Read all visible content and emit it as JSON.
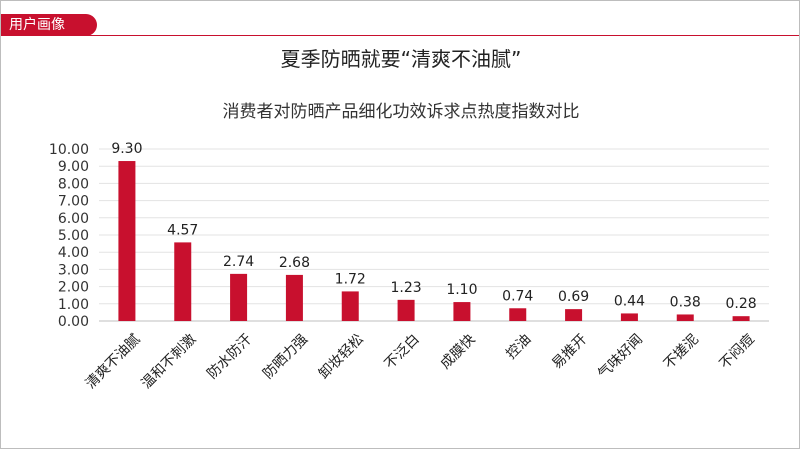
{
  "header": {
    "tag": "用户画像",
    "title": "夏季防晒就要“清爽不油腻”"
  },
  "colors": {
    "accent": "#c8102e",
    "bar": "#c8102e"
  },
  "chart_data": {
    "type": "bar",
    "title": "消费者对防晒产品细化功效诉求点热度指数对比",
    "categories": [
      "清爽不油腻",
      "温和不刺激",
      "防水防汗",
      "防晒力强",
      "卸妆轻松",
      "不泛白",
      "成膜快",
      "控油",
      "易推开",
      "气味好闻",
      "不搓泥",
      "不闷痘"
    ],
    "values": [
      9.3,
      4.57,
      2.74,
      2.68,
      1.72,
      1.23,
      1.1,
      0.74,
      0.69,
      0.44,
      0.38,
      0.28
    ],
    "value_labels": [
      "9.30",
      "4.57",
      "2.74",
      "2.68",
      "1.72",
      "1.23",
      "1.10",
      "0.74",
      "0.69",
      "0.44",
      "0.38",
      "0.28"
    ],
    "yticks": [
      "0.00",
      "1.00",
      "2.00",
      "3.00",
      "4.00",
      "5.00",
      "6.00",
      "7.00",
      "8.00",
      "9.00",
      "10.00"
    ],
    "ylim": [
      0,
      10
    ],
    "grid": true
  }
}
